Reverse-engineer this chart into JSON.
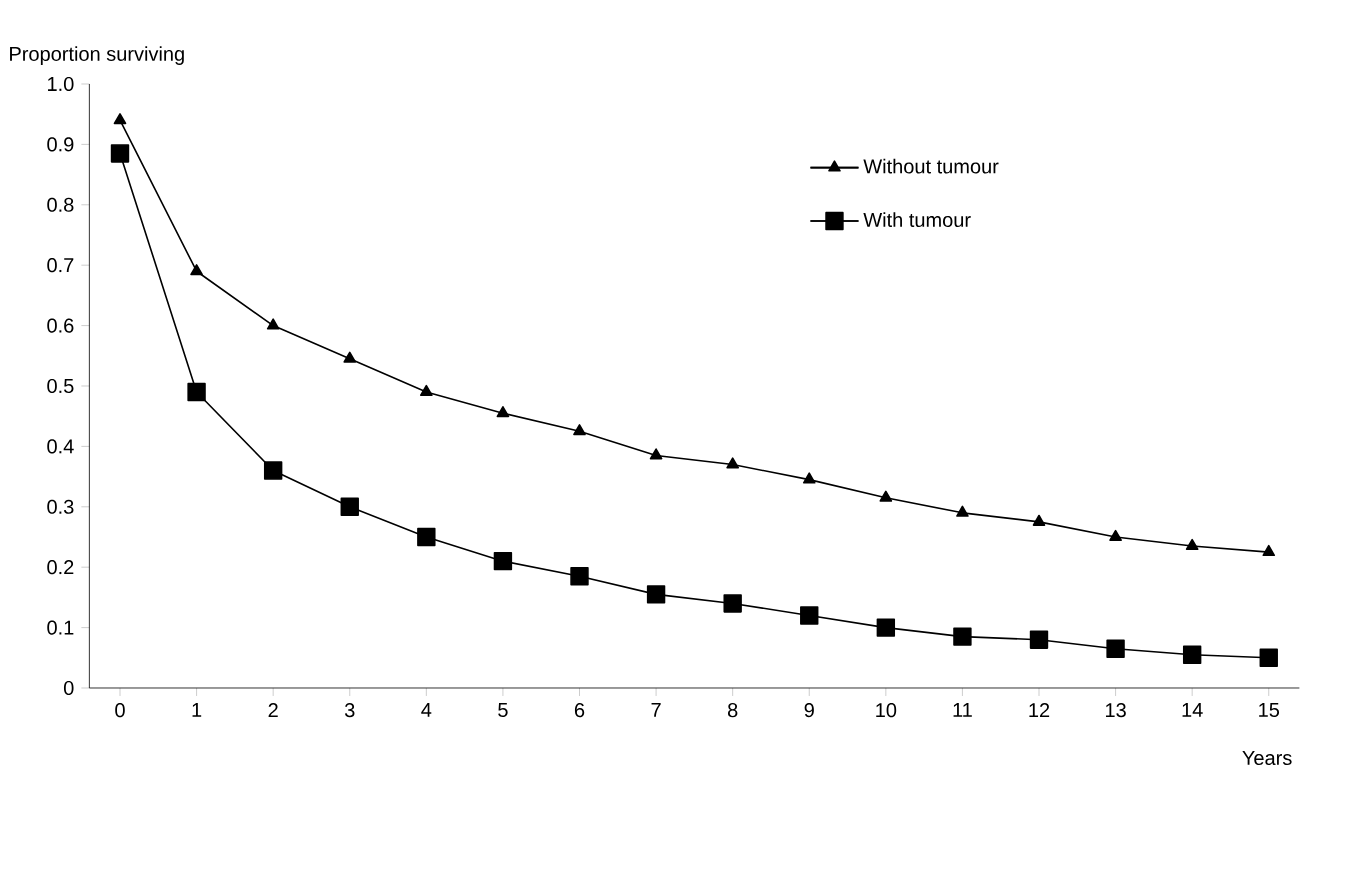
{
  "chart_data": {
    "type": "line",
    "xlabel": "Years",
    "ylabel": "Proportion surviving",
    "x": [
      0,
      1,
      2,
      3,
      4,
      5,
      6,
      7,
      8,
      9,
      10,
      11,
      12,
      13,
      14,
      15
    ],
    "series": [
      {
        "name": "Without tumour",
        "color": "#000000",
        "marker": "triangle",
        "values": [
          0.94,
          0.69,
          0.6,
          0.545,
          0.49,
          0.455,
          0.425,
          0.385,
          0.37,
          0.345,
          0.315,
          0.29,
          0.275,
          0.25,
          0.235,
          0.225
        ]
      },
      {
        "name": "With tumour",
        "color": "#000000",
        "marker": "square",
        "values": [
          0.885,
          0.49,
          0.36,
          0.3,
          0.25,
          0.21,
          0.185,
          0.155,
          0.14,
          0.12,
          0.1,
          0.085,
          0.08,
          0.065,
          0.055,
          0.05
        ]
      }
    ],
    "xlim": [
      -0.4,
      15.4
    ],
    "ylim": [
      0,
      1
    ],
    "xticks": [
      0,
      1,
      2,
      3,
      4,
      5,
      6,
      7,
      8,
      9,
      10,
      11,
      12,
      13,
      14,
      15
    ],
    "yticks": [
      0,
      0.1,
      0.2,
      0.3,
      0.4,
      0.5,
      0.6,
      0.7,
      0.8,
      0.9,
      {
        "value": 1,
        "label": "1.0"
      }
    ],
    "grid": false,
    "legend": "top right",
    "line_style": "solid"
  }
}
